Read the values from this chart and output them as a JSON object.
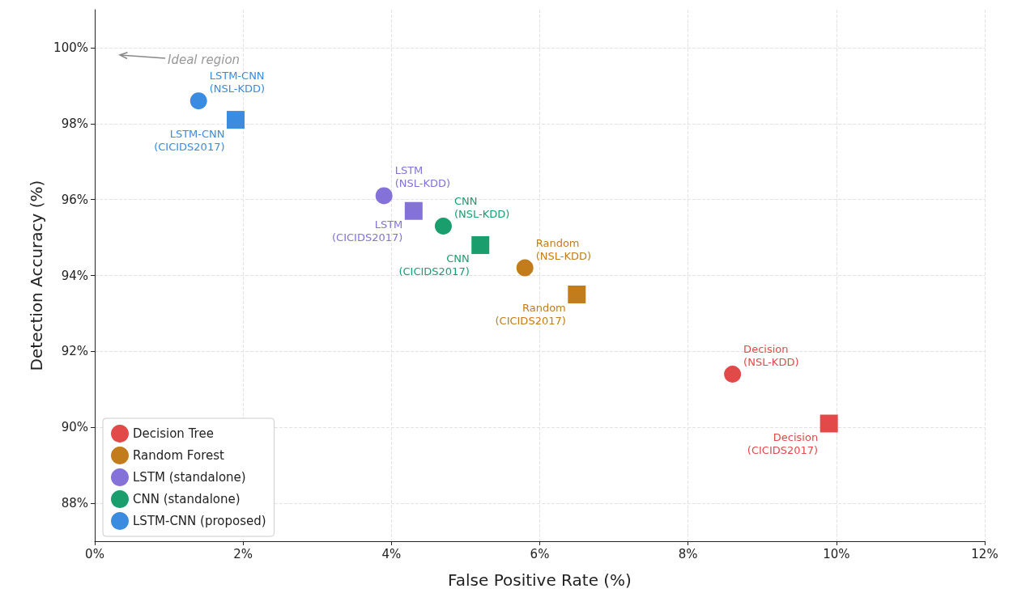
{
  "chart_data": {
    "type": "scatter",
    "xlabel": "False Positive Rate (%)",
    "ylabel": "Detection Accuracy (%)",
    "xlim": [
      0,
      12
    ],
    "ylim": [
      87,
      101
    ],
    "xticks": [
      {
        "value": 0,
        "label": "0%"
      },
      {
        "value": 2,
        "label": "2%"
      },
      {
        "value": 4,
        "label": "4%"
      },
      {
        "value": 6,
        "label": "6%"
      },
      {
        "value": 8,
        "label": "8%"
      },
      {
        "value": 10,
        "label": "10%"
      },
      {
        "value": 12,
        "label": "12%"
      }
    ],
    "yticks": [
      {
        "value": 88,
        "label": "88%"
      },
      {
        "value": 90,
        "label": "90%"
      },
      {
        "value": 92,
        "label": "92%"
      },
      {
        "value": 94,
        "label": "94%"
      },
      {
        "value": 96,
        "label": "96%"
      },
      {
        "value": 98,
        "label": "98%"
      },
      {
        "value": 100,
        "label": "100%"
      }
    ],
    "grid": true,
    "legend": "bottom left",
    "series": [
      {
        "name": "Decision Tree",
        "color": "#e24a4a",
        "marker": "circle",
        "x": [
          8.6
        ],
        "values": [
          91.4
        ]
      },
      {
        "name": "Random Forest",
        "color": "#c27c1c",
        "marker": "circle",
        "x": [
          5.8
        ],
        "values": [
          94.2
        ]
      },
      {
        "name": "LSTM (standalone)",
        "color": "#8472d8",
        "marker": "circle",
        "x": [
          3.9
        ],
        "values": [
          96.1
        ]
      },
      {
        "name": "CNN (standalone)",
        "color": "#1a9e6e",
        "marker": "circle",
        "x": [
          4.7
        ],
        "values": [
          95.3
        ]
      },
      {
        "name": "LSTM-CNN (proposed)",
        "color": "#3a8ce0",
        "marker": "circle",
        "x": [
          1.4
        ],
        "values": [
          98.6
        ]
      },
      {
        "color": "#e24a4a",
        "marker": "square",
        "x": [
          9.9
        ],
        "values": [
          90.1
        ]
      },
      {
        "color": "#c27c1c",
        "marker": "square",
        "x": [
          6.5
        ],
        "values": [
          93.5
        ]
      },
      {
        "color": "#8472d8",
        "marker": "square",
        "x": [
          4.3
        ],
        "values": [
          95.7
        ]
      },
      {
        "color": "#1a9e6e",
        "marker": "square",
        "x": [
          5.2
        ],
        "values": [
          94.8
        ]
      },
      {
        "color": "#3a8ce0",
        "marker": "square",
        "x": [
          1.9
        ],
        "values": [
          98.1
        ]
      }
    ],
    "annotations": [
      {
        "text": "Decision\n(NSL-KDD)",
        "x": 8.6,
        "y": 91.4
      },
      {
        "text": "Decision\n(CICIDS2017)",
        "x": 9.9,
        "y": 90.1
      },
      {
        "text": "Random\n(NSL-KDD)",
        "x": 5.8,
        "y": 94.2
      },
      {
        "text": "Random\n(CICIDS2017)",
        "x": 6.5,
        "y": 93.5
      },
      {
        "text": "LSTM\n(NSL-KDD)",
        "x": 3.9,
        "y": 96.1
      },
      {
        "text": "LSTM\n(CICIDS2017)",
        "x": 4.3,
        "y": 95.7
      },
      {
        "text": "CNN\n(NSL-KDD)",
        "x": 4.7,
        "y": 95.3
      },
      {
        "text": "CNN\n(CICIDS2017)",
        "x": 5.2,
        "y": 94.8
      },
      {
        "text": "LSTM-CNN\n(NSL-KDD)",
        "x": 1.4,
        "y": 98.6
      },
      {
        "text": "LSTM-CNN\n(CICIDS2017)",
        "x": 1.9,
        "y": 98.1
      },
      "Ideal region"
    ]
  }
}
